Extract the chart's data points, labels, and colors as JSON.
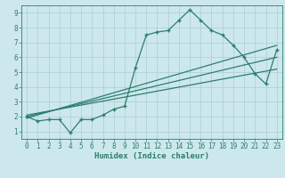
{
  "line1_x": [
    0,
    1,
    2,
    3,
    4,
    5,
    6,
    7,
    8,
    9,
    10,
    11,
    12,
    13,
    14,
    15,
    16,
    17,
    18,
    19,
    20,
    21,
    22,
    23
  ],
  "line1_y": [
    2.0,
    1.7,
    1.8,
    1.8,
    0.9,
    1.8,
    1.8,
    2.1,
    2.5,
    2.7,
    5.3,
    7.5,
    7.7,
    7.8,
    8.5,
    9.2,
    8.5,
    7.8,
    7.5,
    6.8,
    6.0,
    4.9,
    4.2,
    6.5
  ],
  "line2_x": [
    0,
    23
  ],
  "line2_y": [
    1.9,
    6.8
  ],
  "line3_x": [
    0,
    23
  ],
  "line3_y": [
    2.0,
    6.0
  ],
  "line4_x": [
    0,
    23
  ],
  "line4_y": [
    2.1,
    5.2
  ],
  "line_color": "#2d7d6e",
  "bg_color": "#cce8ec",
  "grid_color": "#aacdd4",
  "xlabel": "Humidex (Indice chaleur)",
  "xlim": [
    -0.5,
    23.5
  ],
  "ylim": [
    0.5,
    9.5
  ],
  "xticks": [
    0,
    1,
    2,
    3,
    4,
    5,
    6,
    7,
    8,
    9,
    10,
    11,
    12,
    13,
    14,
    15,
    16,
    17,
    18,
    19,
    20,
    21,
    22,
    23
  ],
  "yticks": [
    1,
    2,
    3,
    4,
    5,
    6,
    7,
    8,
    9
  ]
}
